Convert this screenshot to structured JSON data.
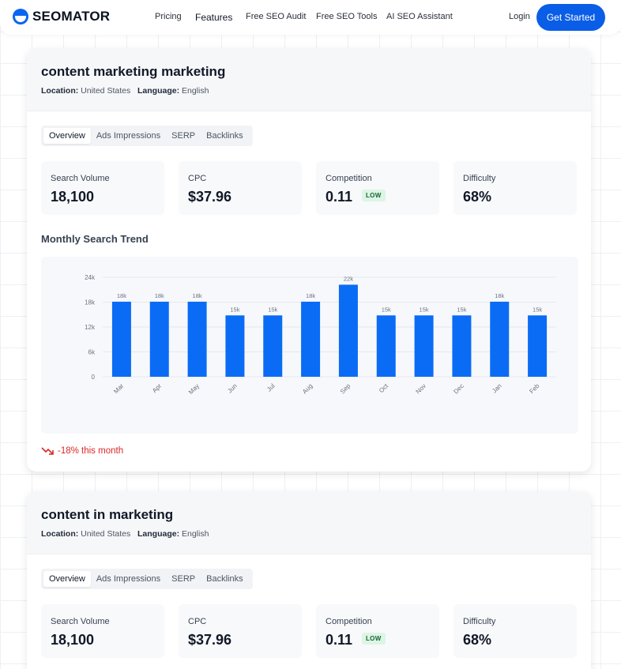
{
  "nav": {
    "brand": "SEOMATOR",
    "links": [
      "Pricing",
      "Features",
      "Free SEO Audit",
      "Free SEO Tools",
      "AI SEO Assistant"
    ],
    "active_link": "Features",
    "login": "Login",
    "cta": "Get Started"
  },
  "colors": {
    "accent": "#0a5de6",
    "bar": "#0a6cf5",
    "negative": "#dc2626",
    "badge_bg": "#dcf5e4",
    "badge_fg": "#166534"
  },
  "cards": [
    {
      "title": "content marketing marketing",
      "location_label": "Location:",
      "location": "United States",
      "language_label": "Language:",
      "language": "English",
      "tabs": [
        "Overview",
        "Ads Impressions",
        "SERP",
        "Backlinks"
      ],
      "active_tab": "Overview",
      "metrics": {
        "search_volume": {
          "label": "Search Volume",
          "value": "18,100"
        },
        "cpc": {
          "label": "CPC",
          "value": "$37.96"
        },
        "competition": {
          "label": "Competition",
          "value": "0.11",
          "badge": "LOW"
        },
        "difficulty": {
          "label": "Difficulty",
          "value": "68%"
        }
      },
      "trend_title": "Monthly Search Trend",
      "trend_change": "-18% this month",
      "chart_data": {
        "type": "bar",
        "categories": [
          "Mar",
          "Apr",
          "May",
          "Jun",
          "Jul",
          "Aug",
          "Sep",
          "Oct",
          "Nov",
          "Dec",
          "Jan",
          "Feb"
        ],
        "values": [
          18100,
          18100,
          18100,
          14800,
          14800,
          18100,
          22200,
          14800,
          14800,
          14800,
          18100,
          14800
        ],
        "data_labels": [
          "18k",
          "18k",
          "18k",
          "15k",
          "15k",
          "18k",
          "22k",
          "15k",
          "15k",
          "15k",
          "18k",
          "15k"
        ],
        "y_ticks": [
          "0",
          "6k",
          "12k",
          "18k",
          "24k"
        ],
        "ylim": [
          0,
          24000
        ],
        "grid": true
      }
    },
    {
      "title": "content in marketing",
      "location_label": "Location:",
      "location": "United States",
      "language_label": "Language:",
      "language": "English",
      "tabs": [
        "Overview",
        "Ads Impressions",
        "SERP",
        "Backlinks"
      ],
      "active_tab": "Overview",
      "metrics": {
        "search_volume": {
          "label": "Search Volume",
          "value": "18,100"
        },
        "cpc": {
          "label": "CPC",
          "value": "$37.96"
        },
        "competition": {
          "label": "Competition",
          "value": "0.11",
          "badge": "LOW"
        },
        "difficulty": {
          "label": "Difficulty",
          "value": "68%"
        }
      }
    }
  ]
}
